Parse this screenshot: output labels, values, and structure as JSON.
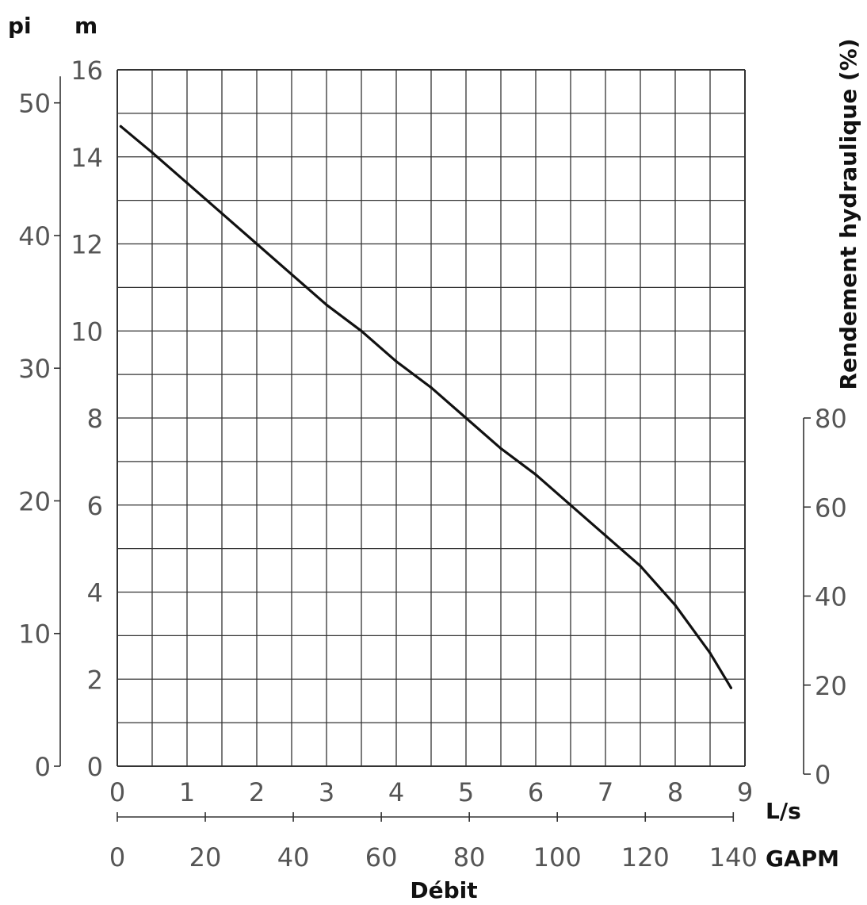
{
  "chart_data": {
    "type": "line",
    "units": {
      "left_outer": "pi",
      "left_inner": "m",
      "bottom_primary": "L/s",
      "bottom_secondary": "GAPM"
    },
    "xlabel": "Débit",
    "y2label": "Rendement hydraulique (%)",
    "xlim": [
      0,
      9
    ],
    "ylim": [
      0,
      16
    ],
    "x_ticks": [
      "0",
      "1",
      "2",
      "3",
      "4",
      "5",
      "6",
      "7",
      "8",
      "9"
    ],
    "x2_ticks": [
      "0",
      "20",
      "40",
      "60",
      "80",
      "100",
      "120",
      "140"
    ],
    "x2_values": [
      0,
      20,
      40,
      60,
      80,
      100,
      120,
      140
    ],
    "y_ticks": [
      "0",
      "2",
      "4",
      "6",
      "8",
      "10",
      "12",
      "14",
      "16"
    ],
    "y_ft_ticks": [
      "0",
      "10",
      "20",
      "30",
      "40",
      "50"
    ],
    "y_ft_values": [
      0,
      10,
      20,
      30,
      40,
      50
    ],
    "y2_ticks": [
      "0",
      "20",
      "40",
      "60",
      "80"
    ],
    "y2_values": [
      0,
      20,
      40,
      60,
      80
    ],
    "series": [
      {
        "x": [
          0.05,
          0.5,
          1.0,
          1.5,
          2.0,
          2.5,
          3.0,
          3.5,
          4.0,
          4.5,
          5.0,
          5.5,
          6.0,
          6.5,
          7.0,
          7.5,
          8.0,
          8.5,
          8.8
        ],
        "y": [
          14.7,
          14.1,
          13.4,
          12.7,
          12.0,
          11.3,
          10.6,
          10.0,
          9.3,
          8.7,
          8.0,
          7.3,
          6.7,
          6.0,
          5.3,
          4.6,
          3.7,
          2.6,
          1.8
        ]
      }
    ]
  }
}
